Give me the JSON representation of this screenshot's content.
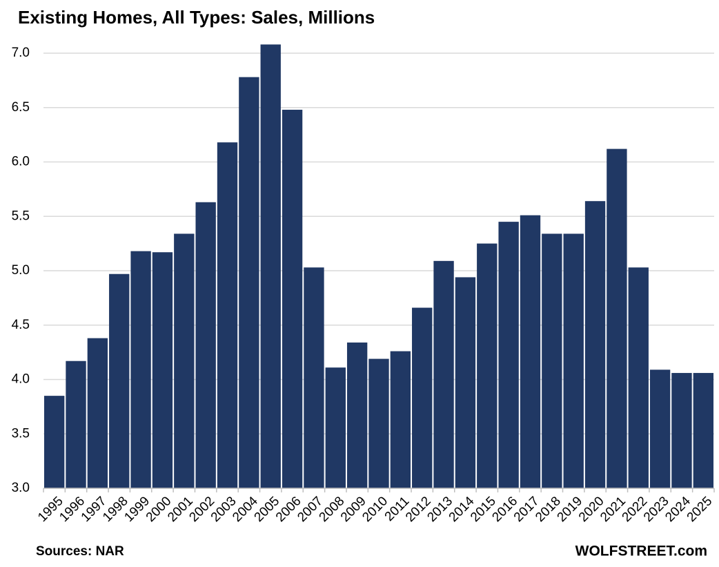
{
  "chart_data": {
    "type": "bar",
    "title": "Existing Homes, All Types: Sales, Millions",
    "categories": [
      "1995",
      "1996",
      "1997",
      "1998",
      "1999",
      "2000",
      "2001",
      "2002",
      "2003",
      "2004",
      "2005",
      "2006",
      "2007",
      "2008",
      "2009",
      "2010",
      "2011",
      "2012",
      "2013",
      "2014",
      "2015",
      "2016",
      "2017",
      "2018",
      "2019",
      "2020",
      "2021",
      "2022",
      "2023",
      "2024",
      "2025"
    ],
    "values": [
      3.85,
      4.17,
      4.38,
      4.97,
      5.18,
      5.17,
      5.34,
      5.63,
      6.18,
      6.78,
      7.08,
      6.48,
      5.03,
      4.11,
      4.34,
      4.19,
      4.26,
      4.66,
      5.09,
      4.94,
      5.25,
      5.45,
      5.51,
      5.34,
      5.34,
      5.64,
      6.12,
      5.03,
      4.09,
      4.06,
      4.06
    ],
    "color": "#203864",
    "ylim": [
      3.0,
      7.2
    ],
    "yticks": [
      {
        "value": 3,
        "label": "3.0"
      },
      3.5,
      {
        "value": 4,
        "label": "4.0"
      },
      4.5,
      {
        "value": 5,
        "label": "5.0"
      },
      5.5,
      {
        "value": 6,
        "label": "6.0"
      },
      6.5,
      {
        "value": 7,
        "label": "7.0"
      }
    ],
    "grid": true,
    "source": "Sources: NAR",
    "credit": "WOLFSTREET.com"
  }
}
